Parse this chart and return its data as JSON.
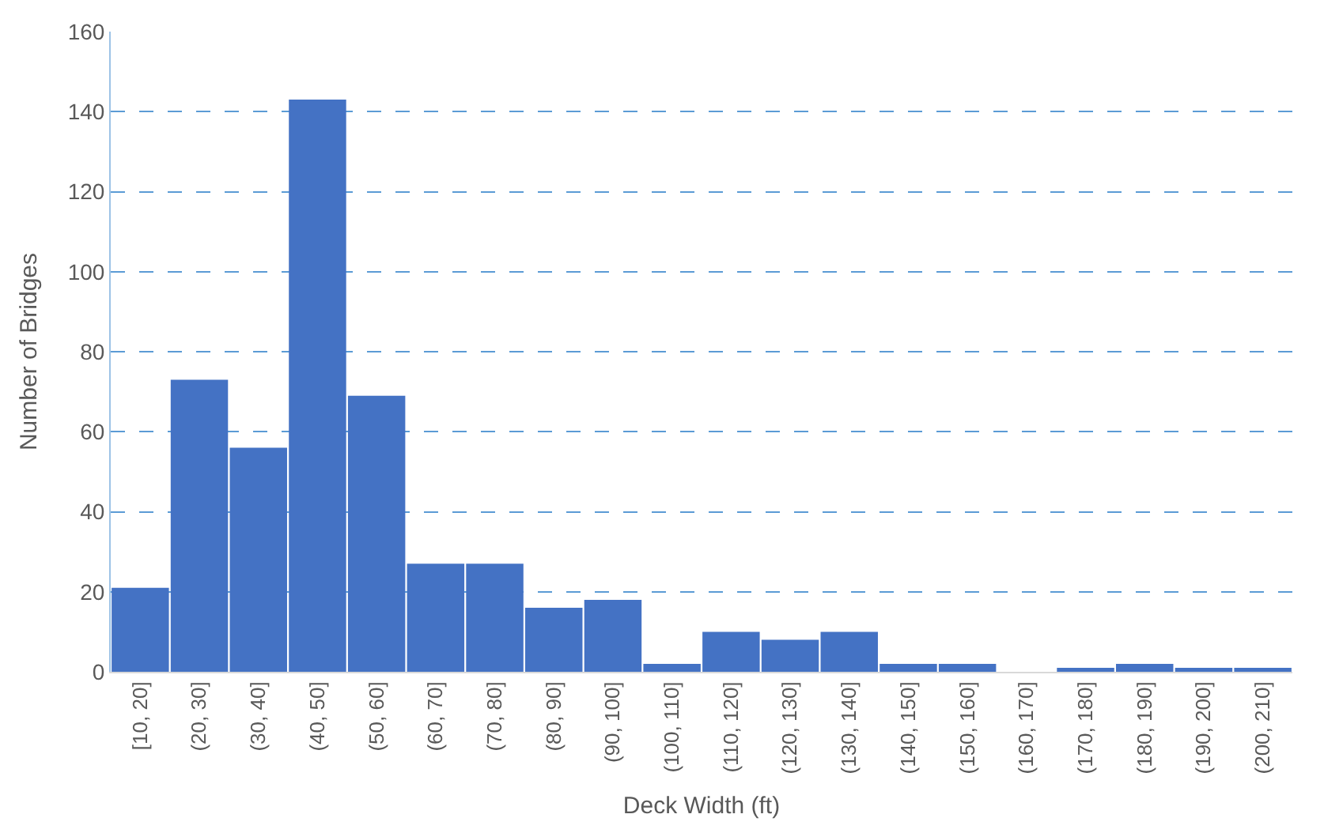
{
  "chart_data": {
    "type": "bar",
    "xlabel": "Deck Width (ft)",
    "ylabel": "Number of Bridges",
    "categories": [
      "[10, 20]",
      "(20, 30]",
      "(30, 40]",
      "(40, 50]",
      "(50, 60]",
      "(60, 70]",
      "(70, 80]",
      "(80, 90]",
      "(90, 100]",
      "(100, 110]",
      "(110, 120]",
      "(120, 130]",
      "(130, 140]",
      "(140, 150]",
      "(150, 160]",
      "(160, 170]",
      "(170, 180]",
      "(180, 190]",
      "(190, 200]",
      "(200, 210]"
    ],
    "values": [
      21,
      73,
      56,
      143,
      69,
      27,
      27,
      16,
      18,
      2,
      10,
      8,
      10,
      2,
      2,
      0,
      1,
      2,
      1,
      1
    ],
    "color": "#4472c4",
    "ylim": [
      0,
      160
    ],
    "yticks": [
      0,
      20,
      40,
      60,
      80,
      100,
      120,
      140,
      160
    ],
    "grid": "y",
    "legend": false
  }
}
